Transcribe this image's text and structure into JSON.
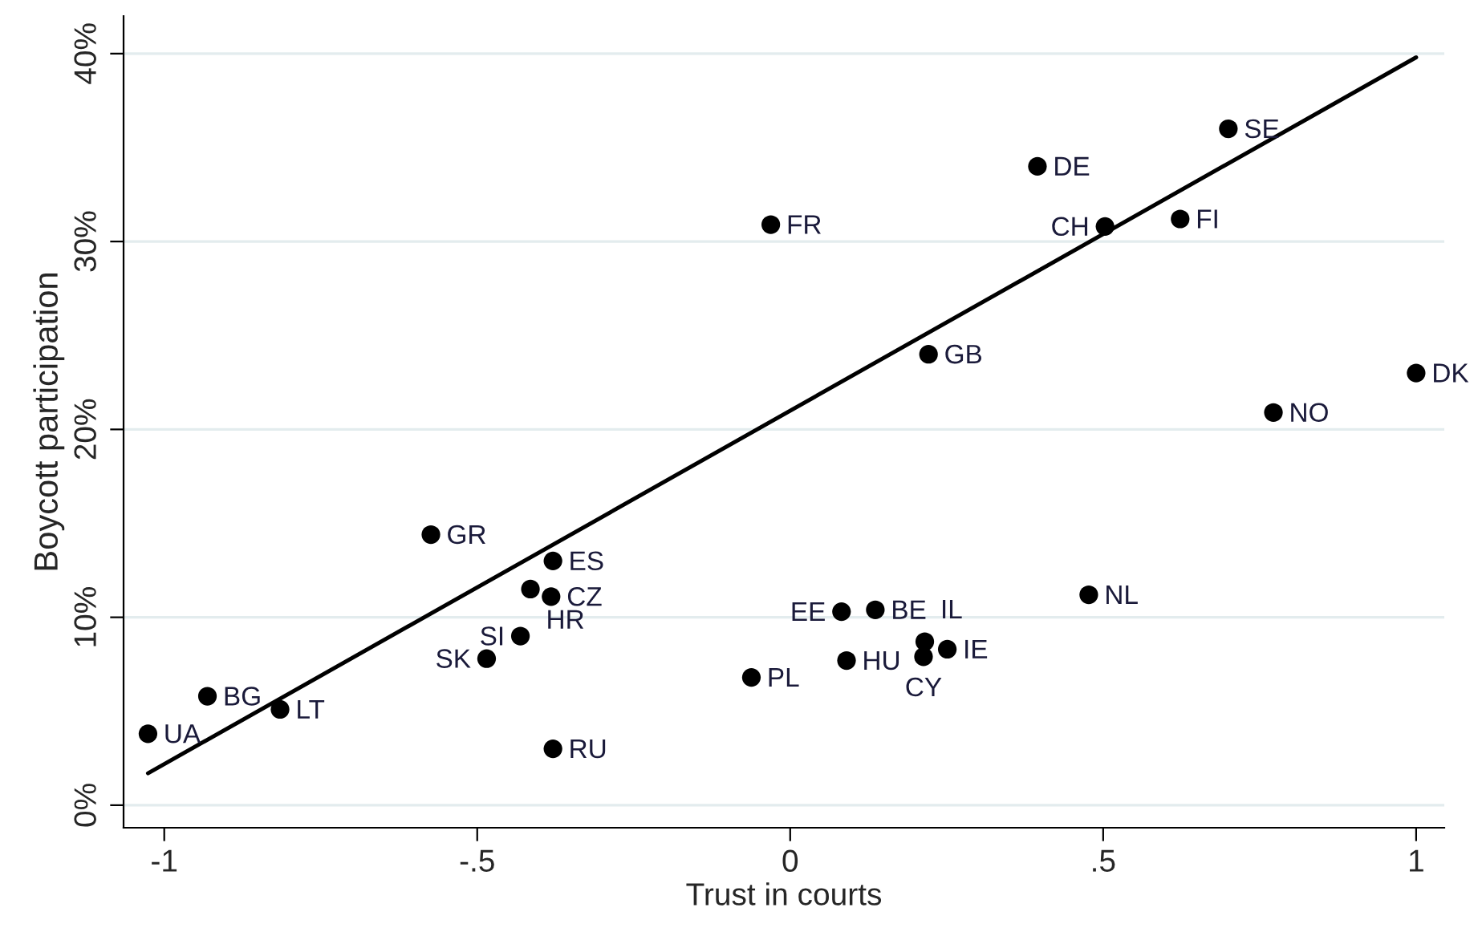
{
  "chart_data": {
    "type": "scatter",
    "xlabel": "Trust in courts",
    "ylabel": "Boycott participation",
    "xlim": [
      -1.065,
      1.045
    ],
    "ylim": [
      -1.2,
      42
    ],
    "xticks": [
      {
        "value": -1,
        "label": "-1"
      },
      {
        "value": -0.5,
        "label": "-.5"
      },
      {
        "value": 0,
        "label": "0"
      },
      {
        "value": 0.5,
        "label": ".5"
      },
      {
        "value": 1,
        "label": "1"
      }
    ],
    "yticks": [
      {
        "value": 0,
        "label": "0%"
      },
      {
        "value": 10,
        "label": "10%"
      },
      {
        "value": 20,
        "label": "20%"
      },
      {
        "value": 30,
        "label": "30%"
      },
      {
        "value": 40,
        "label": "40%"
      }
    ],
    "grid": "y",
    "legend": false,
    "marker": "circle",
    "series": [
      {
        "type": "scatter",
        "color": "#000000",
        "x": [
          -1.026,
          -0.931,
          -0.815,
          -0.574,
          -0.379,
          -0.415,
          -0.382,
          -0.431,
          -0.485,
          -0.379,
          -0.062,
          -0.031,
          0.082,
          0.136,
          0.09,
          0.215,
          0.213,
          0.251,
          0.221,
          0.477,
          0.503,
          0.395,
          0.623,
          0.7,
          0.772,
          1.0
        ],
        "values": [
          3.8,
          5.8,
          5.1,
          14.4,
          13.0,
          11.5,
          11.1,
          9.0,
          7.8,
          3.0,
          6.8,
          30.9,
          10.3,
          10.4,
          7.7,
          8.7,
          7.9,
          8.3,
          24.0,
          11.2,
          30.8,
          34.0,
          31.2,
          36.0,
          20.9,
          23.0
        ],
        "value_labels": [
          "UA",
          "BG",
          "LT",
          "GR",
          "ES",
          "HR",
          "CZ",
          "SI",
          "SK",
          "RU",
          "PL",
          "FR",
          "EE",
          "BE",
          "HU",
          "IL",
          "CY",
          "IE",
          "GB",
          "NL",
          "CH",
          "DE",
          "FI",
          "SE",
          "NO",
          "DK"
        ]
      },
      {
        "type": "line",
        "color": "#000000",
        "line_style": "solid",
        "marker": "none",
        "x": [
          -1.026,
          1.0
        ],
        "values": [
          1.7,
          39.8
        ]
      }
    ]
  }
}
